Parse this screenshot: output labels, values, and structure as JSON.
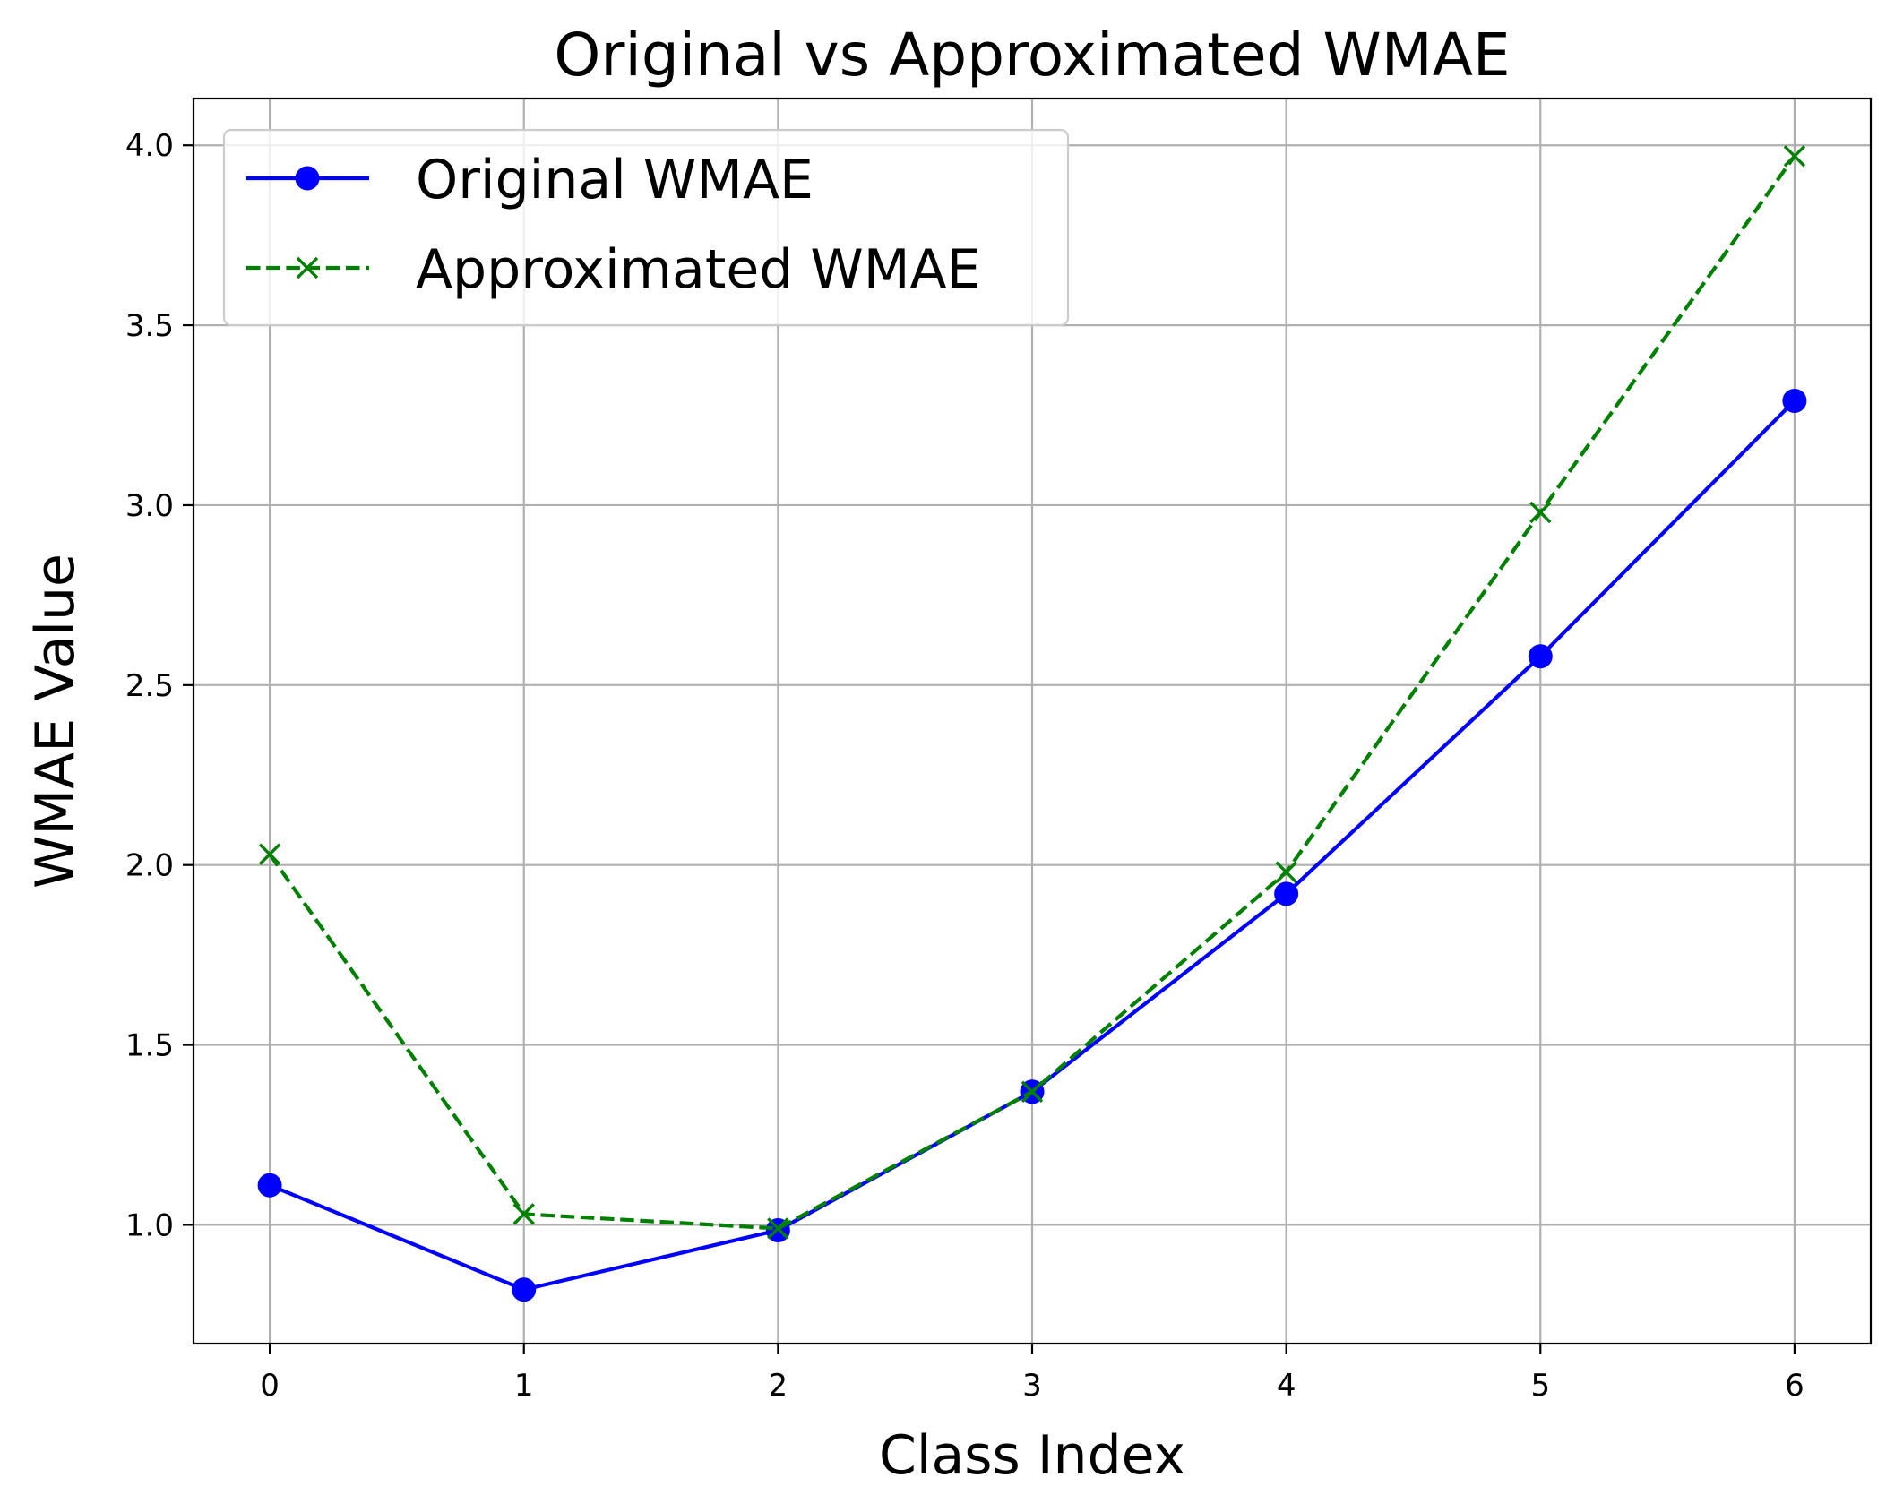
{
  "chart_data": {
    "type": "line",
    "title": "Original vs Approximated WMAE",
    "xlabel": "Class Index",
    "ylabel": "WMAE Value",
    "x": [
      0,
      1,
      2,
      3,
      4,
      5,
      6
    ],
    "xticks": [
      "0",
      "1",
      "2",
      "3",
      "4",
      "5",
      "6"
    ],
    "yticks": [
      "1.0",
      "1.5",
      "2.0",
      "2.5",
      "3.0",
      "3.5",
      "4.0"
    ],
    "xlim": [
      -0.3,
      6.3
    ],
    "ylim": [
      0.67,
      4.13
    ],
    "grid": true,
    "legend_position": "upper-left",
    "series": [
      {
        "name": "Original WMAE",
        "color": "#0000ff",
        "line_style": "solid",
        "marker": "circle",
        "values": [
          1.11,
          0.82,
          0.985,
          1.37,
          1.92,
          2.58,
          3.29
        ]
      },
      {
        "name": "Approximated WMAE",
        "color": "#008000",
        "line_style": "dashed",
        "marker": "x",
        "values": [
          2.03,
          1.03,
          0.99,
          1.37,
          1.98,
          2.98,
          3.97
        ]
      }
    ]
  }
}
